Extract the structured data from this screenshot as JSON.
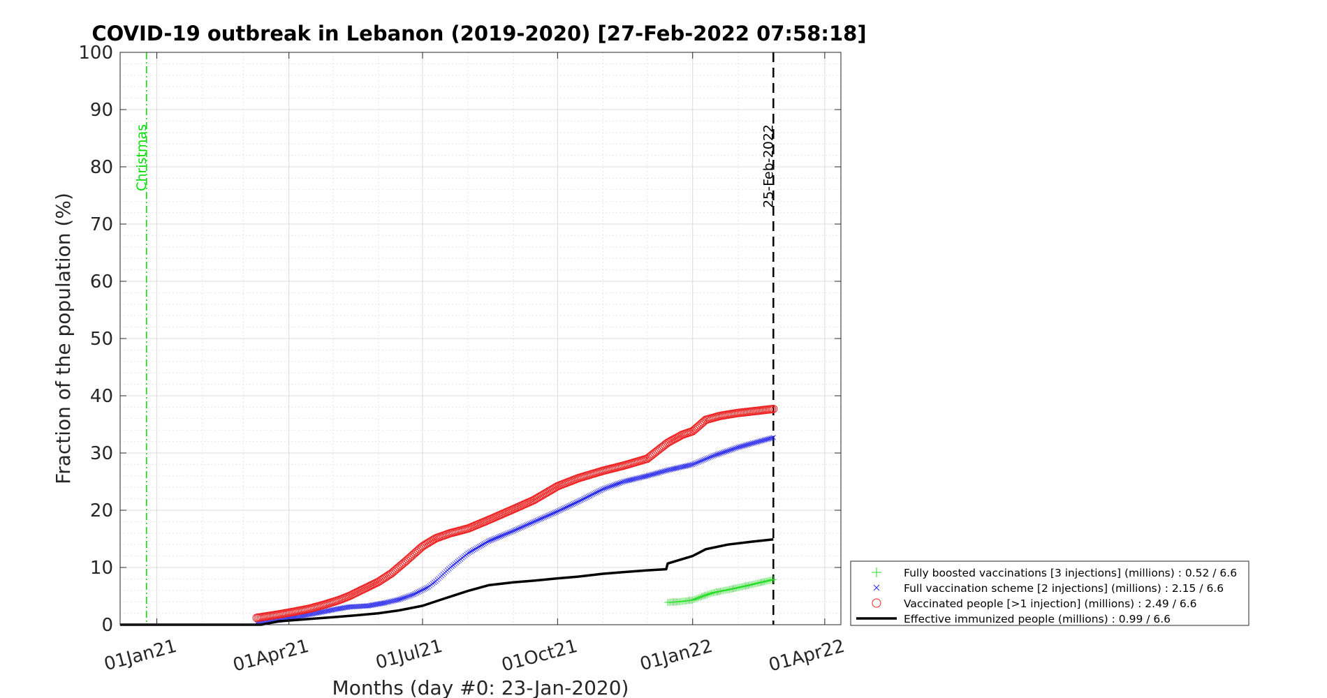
{
  "chart_data": {
    "type": "line",
    "title": "COVID-19 outbreak in Lebanon (2019-2020) [27-Feb-2022 07:58:18]",
    "xlabel": "Months (day #0: 23-Jan-2020)",
    "ylabel": "Fraction of the population (%)",
    "xlim": [
      "2020-12-07",
      "2022-04-12"
    ],
    "ylim": [
      0,
      100
    ],
    "x_ticks": [
      {
        "date": "2021-01-01",
        "label": "01Jan21"
      },
      {
        "date": "2021-04-01",
        "label": "01Apr21"
      },
      {
        "date": "2021-07-01",
        "label": "01Jul21"
      },
      {
        "date": "2021-10-01",
        "label": "01Oct21"
      },
      {
        "date": "2022-01-01",
        "label": "01Jan22"
      },
      {
        "date": "2022-04-01",
        "label": "01Apr22"
      }
    ],
    "y_ticks": [
      0,
      10,
      20,
      30,
      40,
      50,
      60,
      70,
      80,
      90,
      100
    ],
    "grid": true,
    "minor_grid": true,
    "legend_position": "outside-bottom-right",
    "vertical_markers": [
      {
        "date": "2020-12-25",
        "label": "Christmas",
        "color": "#00dd00",
        "style": "dash-dot"
      },
      {
        "date": "2022-02-25",
        "label": "25-Feb-2022",
        "color": "#000000",
        "style": "dashed"
      }
    ],
    "series": [
      {
        "name": "Fully boosted vaccinations [3 injections] (millions) : 0.52 / 6.6",
        "color": "#22dd22",
        "marker": "plus",
        "points": [
          [
            "2021-12-15",
            3.9
          ],
          [
            "2021-12-22",
            4.0
          ],
          [
            "2022-01-01",
            4.3
          ],
          [
            "2022-01-08",
            5.0
          ],
          [
            "2022-01-15",
            5.6
          ],
          [
            "2022-01-25",
            6.1
          ],
          [
            "2022-02-05",
            6.7
          ],
          [
            "2022-02-15",
            7.3
          ],
          [
            "2022-02-25",
            7.9
          ]
        ]
      },
      {
        "name": "Full vaccination scheme [2 injections] (millions) : 2.15 / 6.6",
        "color": "#2222ee",
        "marker": "x",
        "points": [
          [
            "2021-03-10",
            0.3
          ],
          [
            "2021-03-25",
            0.8
          ],
          [
            "2021-04-05",
            1.3
          ],
          [
            "2021-04-15",
            1.8
          ],
          [
            "2021-04-25",
            2.3
          ],
          [
            "2021-05-05",
            2.8
          ],
          [
            "2021-05-12",
            3.1
          ],
          [
            "2021-05-25",
            3.3
          ],
          [
            "2021-06-05",
            3.8
          ],
          [
            "2021-06-15",
            4.4
          ],
          [
            "2021-06-25",
            5.3
          ],
          [
            "2021-07-05",
            6.6
          ],
          [
            "2021-07-10",
            7.6
          ],
          [
            "2021-07-20",
            10.0
          ],
          [
            "2021-08-01",
            12.5
          ],
          [
            "2021-08-15",
            14.6
          ],
          [
            "2021-09-01",
            16.4
          ],
          [
            "2021-09-15",
            18.0
          ],
          [
            "2021-10-01",
            19.8
          ],
          [
            "2021-10-15",
            21.5
          ],
          [
            "2021-11-01",
            23.7
          ],
          [
            "2021-11-15",
            25.0
          ],
          [
            "2021-12-01",
            26.0
          ],
          [
            "2021-12-15",
            27.0
          ],
          [
            "2022-01-01",
            28.0
          ],
          [
            "2022-01-15",
            29.5
          ],
          [
            "2022-02-01",
            31.0
          ],
          [
            "2022-02-15",
            32.0
          ],
          [
            "2022-02-25",
            32.7
          ]
        ]
      },
      {
        "name": "Vaccinated people [>1 injection] (millions) : 2.49 / 6.6",
        "color": "#ee2222",
        "marker": "circle",
        "points": [
          [
            "2021-03-10",
            1.2
          ],
          [
            "2021-03-25",
            1.8
          ],
          [
            "2021-04-05",
            2.3
          ],
          [
            "2021-04-15",
            2.8
          ],
          [
            "2021-04-25",
            3.5
          ],
          [
            "2021-05-05",
            4.3
          ],
          [
            "2021-05-12",
            5.0
          ],
          [
            "2021-05-20",
            6.0
          ],
          [
            "2021-06-01",
            7.5
          ],
          [
            "2021-06-10",
            9.0
          ],
          [
            "2021-06-20",
            11.2
          ],
          [
            "2021-07-01",
            13.7
          ],
          [
            "2021-07-10",
            15.1
          ],
          [
            "2021-07-20",
            16.0
          ],
          [
            "2021-08-01",
            16.8
          ],
          [
            "2021-08-15",
            18.3
          ],
          [
            "2021-09-01",
            20.2
          ],
          [
            "2021-09-15",
            21.8
          ],
          [
            "2021-10-01",
            24.2
          ],
          [
            "2021-10-15",
            25.6
          ],
          [
            "2021-11-01",
            26.9
          ],
          [
            "2021-11-15",
            27.8
          ],
          [
            "2021-12-01",
            29.0
          ],
          [
            "2021-12-15",
            31.8
          ],
          [
            "2021-12-25",
            33.2
          ],
          [
            "2022-01-01",
            33.8
          ],
          [
            "2022-01-10",
            35.8
          ],
          [
            "2022-01-20",
            36.5
          ],
          [
            "2022-02-01",
            37.0
          ],
          [
            "2022-02-15",
            37.4
          ],
          [
            "2022-02-25",
            37.7
          ]
        ]
      },
      {
        "name": "Effective immunized people (millions) : 0.99 / 6.6",
        "color": "#000000",
        "marker": "none",
        "points": [
          [
            "2020-12-07",
            0
          ],
          [
            "2021-03-13",
            0
          ],
          [
            "2021-03-25",
            0.6
          ],
          [
            "2021-04-15",
            1.0
          ],
          [
            "2021-05-01",
            1.3
          ],
          [
            "2021-05-15",
            1.6
          ],
          [
            "2021-06-01",
            2.0
          ],
          [
            "2021-06-15",
            2.5
          ],
          [
            "2021-07-01",
            3.3
          ],
          [
            "2021-07-15",
            4.5
          ],
          [
            "2021-08-01",
            5.9
          ],
          [
            "2021-08-15",
            6.9
          ],
          [
            "2021-09-01",
            7.4
          ],
          [
            "2021-09-15",
            7.7
          ],
          [
            "2021-10-01",
            8.1
          ],
          [
            "2021-10-15",
            8.4
          ],
          [
            "2021-11-01",
            8.9
          ],
          [
            "2021-11-15",
            9.2
          ],
          [
            "2021-12-01",
            9.5
          ],
          [
            "2021-12-14",
            9.7
          ],
          [
            "2021-12-15",
            10.7
          ],
          [
            "2022-01-01",
            12.0
          ],
          [
            "2022-01-10",
            13.2
          ],
          [
            "2022-01-25",
            14.0
          ],
          [
            "2022-02-10",
            14.5
          ],
          [
            "2022-02-25",
            14.9
          ]
        ]
      }
    ]
  }
}
